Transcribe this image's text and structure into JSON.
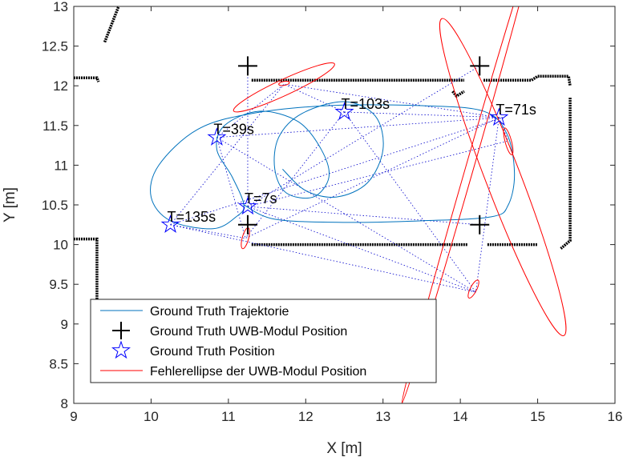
{
  "chart_data": {
    "type": "line",
    "xlabel": "X [m]",
    "ylabel": "Y [m]",
    "xlim": [
      9,
      16
    ],
    "ylim": [
      8,
      13
    ],
    "xticks": [
      9,
      10,
      11,
      12,
      13,
      14,
      15,
      16
    ],
    "yticks": [
      8,
      8.5,
      9,
      9.5,
      10,
      10.5,
      11,
      11.5,
      12,
      12.5,
      13
    ],
    "grid": false,
    "legend_placement": "bottom-left",
    "colors": {
      "trajectory": "#0072BD",
      "anchor": "#000000",
      "gt_position": "#0000FF",
      "ellipse": "#FF0000",
      "walls": "#000000",
      "rays": "#0000CC"
    },
    "series": [
      {
        "name": "Ground Truth Trajektorie",
        "kind": "line",
        "points": [
          [
            11.2,
            10.5
          ],
          [
            11.6,
            10.32
          ],
          [
            12.5,
            10.28
          ],
          [
            13.5,
            10.3
          ],
          [
            14.4,
            10.35
          ],
          [
            14.62,
            10.5
          ],
          [
            14.7,
            10.9
          ],
          [
            14.6,
            11.4
          ],
          [
            14.3,
            11.68
          ],
          [
            13.5,
            11.75
          ],
          [
            12.3,
            11.75
          ],
          [
            11.3,
            11.65
          ],
          [
            10.6,
            11.45
          ],
          [
            10.1,
            11.0
          ],
          [
            10.0,
            10.6
          ],
          [
            10.25,
            10.3
          ],
          [
            10.8,
            10.2
          ],
          [
            11.1,
            10.35
          ],
          [
            11.2,
            10.5
          ],
          [
            11.05,
            10.85
          ],
          [
            10.85,
            11.2
          ],
          [
            10.95,
            11.5
          ],
          [
            11.4,
            11.68
          ],
          [
            11.9,
            11.55
          ],
          [
            12.2,
            11.2
          ],
          [
            12.3,
            10.85
          ],
          [
            12.1,
            10.6
          ],
          [
            11.75,
            10.65
          ],
          [
            11.6,
            10.95
          ],
          [
            11.65,
            11.35
          ],
          [
            11.95,
            11.65
          ],
          [
            12.5,
            11.8
          ],
          [
            12.9,
            11.62
          ],
          [
            13.0,
            11.2
          ],
          [
            12.8,
            10.78
          ],
          [
            12.4,
            10.6
          ],
          [
            12.0,
            10.68
          ],
          [
            11.7,
            10.95
          ]
        ]
      },
      {
        "name": "Ground Truth UWB-Modul Position",
        "kind": "marker-plus",
        "points": [
          [
            11.25,
            12.25
          ],
          [
            14.25,
            12.25
          ],
          [
            11.25,
            10.25
          ],
          [
            14.25,
            10.25
          ]
        ]
      },
      {
        "name": "Ground Truth Position",
        "kind": "marker-star",
        "points": [
          [
            11.25,
            10.48
          ],
          [
            10.85,
            11.35
          ],
          [
            12.5,
            11.67
          ],
          [
            14.5,
            11.6
          ],
          [
            10.25,
            10.25
          ]
        ]
      },
      {
        "name": "Fehlerellipse der UWB-Modul Position",
        "kind": "ellipse",
        "ellipses": [
          {
            "cx": 11.72,
            "cy": 11.98,
            "rx": 0.72,
            "ry": 0.1,
            "angle_deg": 25
          },
          {
            "cx": 11.72,
            "cy": 12.03,
            "rx": 0.07,
            "ry": 0.025,
            "angle_deg": 10
          },
          {
            "cx": 14.1,
            "cy": 10.9,
            "rx": 3.1,
            "ry": 0.05,
            "angle_deg": 74
          },
          {
            "cx": 14.55,
            "cy": 10.85,
            "rx": 2.2,
            "ry": 0.22,
            "angle_deg": -69
          },
          {
            "cx": 14.62,
            "cy": 11.3,
            "rx": 0.18,
            "ry": 0.04,
            "angle_deg": -75
          },
          {
            "cx": 11.22,
            "cy": 10.08,
            "rx": 0.14,
            "ry": 0.04,
            "angle_deg": 75
          },
          {
            "cx": 14.17,
            "cy": 9.44,
            "rx": 0.13,
            "ry": 0.04,
            "angle_deg": 63
          }
        ]
      }
    ],
    "rays": [
      {
        "from": [
          11.25,
          10.48
        ],
        "to": [
          11.25,
          12.25
        ]
      },
      {
        "from": [
          11.25,
          10.48
        ],
        "to": [
          14.25,
          12.25
        ]
      },
      {
        "from": [
          11.25,
          10.48
        ],
        "to": [
          14.25,
          10.25
        ]
      },
      {
        "from": [
          11.25,
          10.48
        ],
        "to": [
          14.2,
          9.4
        ]
      },
      {
        "from": [
          11.25,
          10.48
        ],
        "to": [
          14.6,
          11.3
        ]
      },
      {
        "from": [
          10.85,
          11.35
        ],
        "to": [
          11.72,
          12.02
        ]
      },
      {
        "from": [
          10.85,
          11.35
        ],
        "to": [
          14.55,
          11.6
        ]
      },
      {
        "from": [
          10.85,
          11.35
        ],
        "to": [
          11.22,
          10.08
        ]
      },
      {
        "from": [
          10.85,
          11.35
        ],
        "to": [
          14.2,
          9.4
        ]
      },
      {
        "from": [
          12.5,
          11.67
        ],
        "to": [
          11.72,
          12.02
        ]
      },
      {
        "from": [
          12.5,
          11.67
        ],
        "to": [
          14.55,
          11.6
        ]
      },
      {
        "from": [
          12.5,
          11.67
        ],
        "to": [
          11.22,
          10.08
        ]
      },
      {
        "from": [
          12.5,
          11.67
        ],
        "to": [
          14.2,
          9.4
        ]
      },
      {
        "from": [
          14.5,
          11.6
        ],
        "to": [
          11.72,
          12.02
        ]
      },
      {
        "from": [
          14.5,
          11.6
        ],
        "to": [
          11.22,
          10.08
        ]
      },
      {
        "from": [
          14.5,
          11.6
        ],
        "to": [
          14.2,
          9.4
        ]
      },
      {
        "from": [
          14.5,
          11.6
        ],
        "to": [
          14.62,
          11.3
        ]
      },
      {
        "from": [
          10.25,
          10.25
        ],
        "to": [
          11.72,
          12.02
        ]
      },
      {
        "from": [
          10.25,
          10.25
        ],
        "to": [
          14.55,
          11.6
        ]
      },
      {
        "from": [
          10.25,
          10.25
        ],
        "to": [
          11.22,
          10.08
        ]
      },
      {
        "from": [
          10.25,
          10.25
        ],
        "to": [
          14.2,
          9.4
        ]
      }
    ],
    "walls": [
      {
        "points": [
          [
            11.3,
            12.07
          ],
          [
            14.05,
            12.07
          ]
        ]
      },
      {
        "points": [
          [
            14.3,
            12.07
          ],
          [
            14.92,
            12.07
          ],
          [
            15.0,
            12.12
          ],
          [
            15.4,
            12.12
          ],
          [
            15.42,
            12.0
          ]
        ]
      },
      {
        "points": [
          [
            15.42,
            11.85
          ],
          [
            15.42,
            10.05
          ],
          [
            15.3,
            9.95
          ]
        ]
      },
      {
        "points": [
          [
            11.3,
            10.0
          ],
          [
            14.1,
            10.0
          ]
        ]
      },
      {
        "points": [
          [
            14.35,
            10.0
          ],
          [
            15.0,
            10.0
          ]
        ]
      },
      {
        "points": [
          [
            9.0,
            12.1
          ],
          [
            9.3,
            12.1
          ],
          [
            9.32,
            12.05
          ]
        ]
      },
      {
        "points": [
          [
            9.0,
            10.07
          ],
          [
            9.3,
            10.07
          ],
          [
            9.3,
            9.0
          ]
        ]
      },
      {
        "points": [
          [
            9.4,
            12.55
          ],
          [
            9.58,
            13.0
          ]
        ]
      },
      {
        "points": [
          [
            13.9,
            11.93
          ],
          [
            13.95,
            11.87
          ],
          [
            14.05,
            11.93
          ]
        ]
      }
    ],
    "annotations": [
      {
        "text": "T=7s",
        "x": 11.25,
        "y": 10.48
      },
      {
        "text": "T=39s",
        "x": 10.85,
        "y": 11.35
      },
      {
        "text": "T=103s",
        "x": 12.5,
        "y": 11.67
      },
      {
        "text": "T=71s",
        "x": 14.5,
        "y": 11.6
      },
      {
        "text": "T=135s",
        "x": 10.25,
        "y": 10.25
      }
    ]
  }
}
